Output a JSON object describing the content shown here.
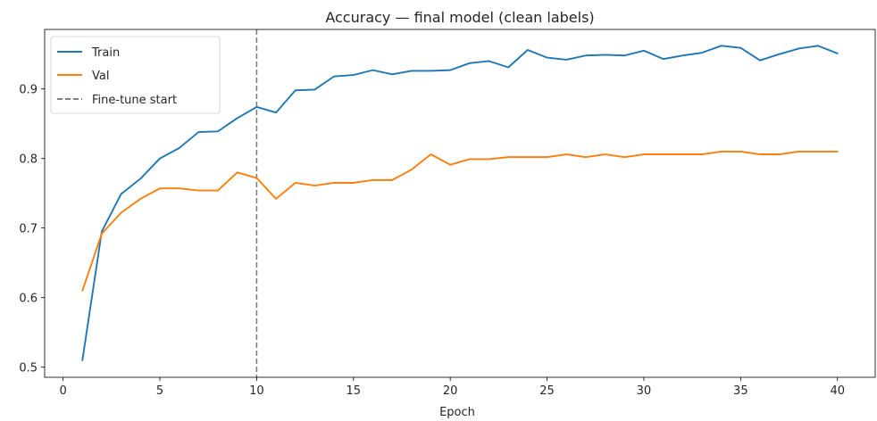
{
  "chart_data": {
    "type": "line",
    "title": "Accuracy — final model (clean labels)",
    "xlabel": "Epoch",
    "ylabel": "",
    "xlim": [
      -0.95,
      41.95
    ],
    "ylim": [
      0.4855,
      0.9855
    ],
    "xticks": [
      0,
      5,
      10,
      15,
      20,
      25,
      30,
      35,
      40
    ],
    "yticks": [
      0.5,
      0.6,
      0.7,
      0.8,
      0.9
    ],
    "ytick_labels": [
      "0.5",
      "0.6",
      "0.7",
      "0.8",
      "0.9"
    ],
    "grid": false,
    "legend_position": "top-left",
    "x": [
      1,
      2,
      3,
      4,
      5,
      6,
      7,
      8,
      9,
      10,
      11,
      12,
      13,
      14,
      15,
      16,
      17,
      18,
      19,
      20,
      21,
      22,
      23,
      24,
      25,
      26,
      27,
      28,
      29,
      30,
      31,
      32,
      33,
      34,
      35,
      36,
      37,
      38,
      39,
      40
    ],
    "series": [
      {
        "name": "Train",
        "color": "#1f77b4",
        "values": [
          0.51,
          0.695,
          0.749,
          0.771,
          0.8,
          0.815,
          0.838,
          0.839,
          0.858,
          0.874,
          0.866,
          0.898,
          0.899,
          0.918,
          0.92,
          0.927,
          0.921,
          0.926,
          0.926,
          0.927,
          0.937,
          0.94,
          0.931,
          0.956,
          0.945,
          0.942,
          0.948,
          0.949,
          0.948,
          0.955,
          0.943,
          0.948,
          0.952,
          0.962,
          0.959,
          0.941,
          0.95,
          0.958,
          0.962,
          0.951
        ]
      },
      {
        "name": "Val",
        "color": "#ff7f0e",
        "values": [
          0.61,
          0.692,
          0.722,
          0.742,
          0.757,
          0.757,
          0.754,
          0.754,
          0.78,
          0.772,
          0.742,
          0.765,
          0.761,
          0.765,
          0.765,
          0.769,
          0.769,
          0.784,
          0.806,
          0.791,
          0.799,
          0.799,
          0.802,
          0.802,
          0.802,
          0.806,
          0.802,
          0.806,
          0.802,
          0.806,
          0.806,
          0.806,
          0.806,
          0.81,
          0.81,
          0.806,
          0.806,
          0.81,
          0.81,
          0.81
        ]
      }
    ],
    "vline": {
      "name": "Fine-tune start",
      "x": 10,
      "color": "#7f7f7f",
      "style": "dashed"
    }
  }
}
